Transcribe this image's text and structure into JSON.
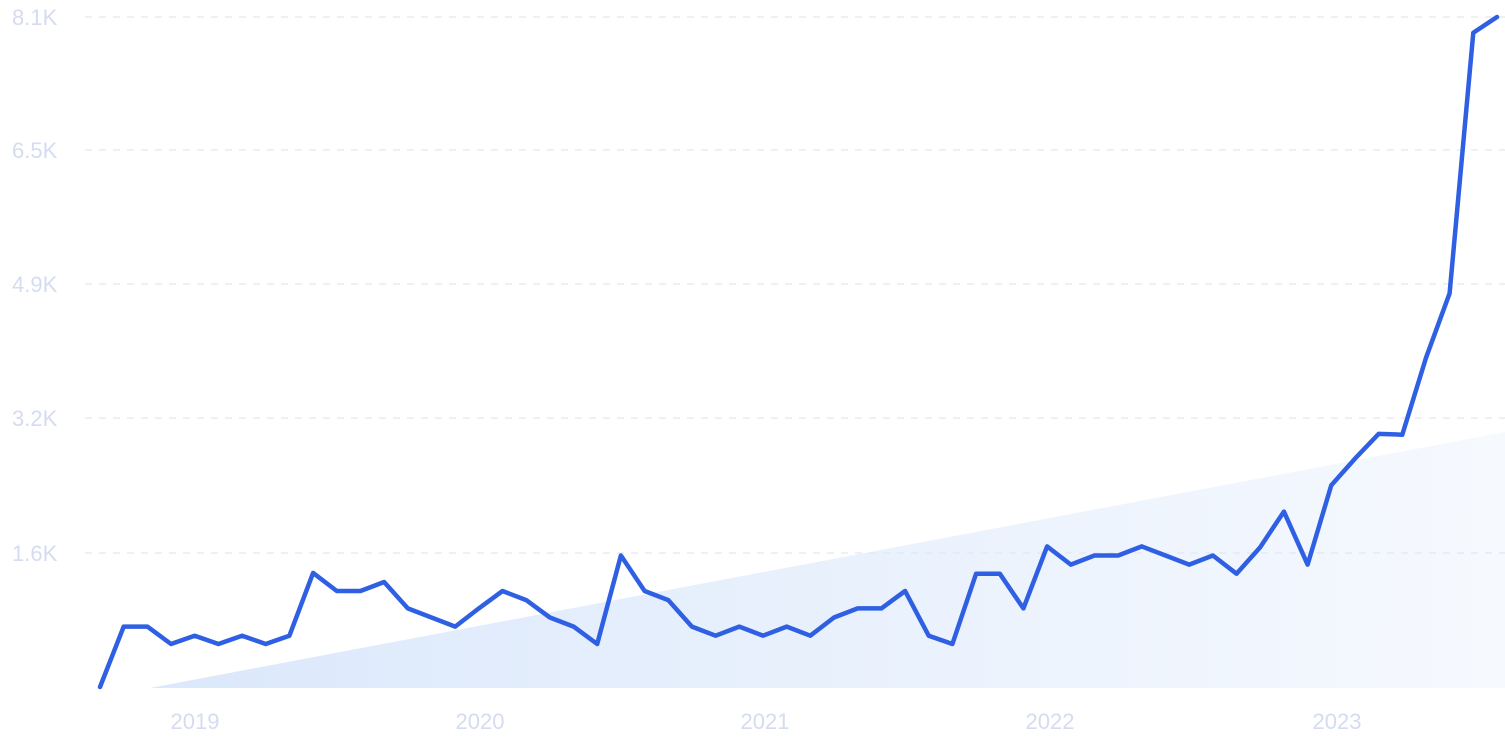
{
  "chart_data": {
    "type": "line",
    "title": "",
    "xlabel": "",
    "ylabel": "",
    "x_ticks": [
      "2019",
      "2020",
      "2021",
      "2022",
      "2023"
    ],
    "y_ticks": [
      "1.6K",
      "3.2K",
      "4.9K",
      "6.5K",
      "8.1K"
    ],
    "ylim": [
      0,
      8100
    ],
    "grid": "horizontal-dashed",
    "series_color": "#2f5fe2",
    "trend_fill_color": "#dbe8fb",
    "series": [
      {
        "values": [
          0,
          730,
          730,
          520,
          620,
          520,
          620,
          520,
          620,
          1380,
          1160,
          1160,
          1270,
          950,
          840,
          730,
          950,
          1160,
          1050,
          840,
          730,
          520,
          1590,
          1160,
          1050,
          730,
          620,
          730,
          620,
          730,
          620,
          840,
          950,
          950,
          1160,
          620,
          520,
          1370,
          1370,
          950,
          1700,
          1480,
          1590,
          1590,
          1700,
          1590,
          1480,
          1590,
          1370,
          1690,
          2120,
          1480,
          2440,
          2760,
          3060,
          3050,
          3980,
          4760,
          7910,
          8100
        ]
      }
    ]
  }
}
